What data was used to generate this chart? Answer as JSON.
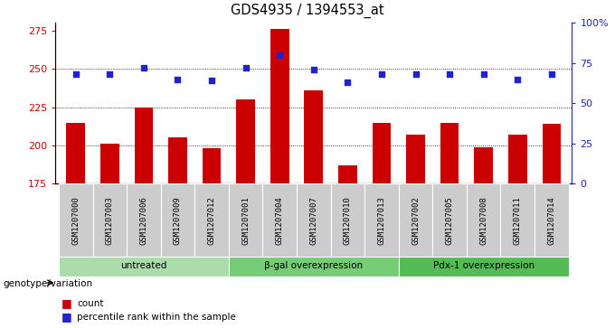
{
  "title": "GDS4935 / 1394553_at",
  "samples": [
    "GSM1207000",
    "GSM1207003",
    "GSM1207006",
    "GSM1207009",
    "GSM1207012",
    "GSM1207001",
    "GSM1207004",
    "GSM1207007",
    "GSM1207010",
    "GSM1207013",
    "GSM1207002",
    "GSM1207005",
    "GSM1207008",
    "GSM1207011",
    "GSM1207014"
  ],
  "counts": [
    215,
    201,
    225,
    205,
    198,
    230,
    276,
    236,
    187,
    215,
    207,
    215,
    199,
    207,
    214
  ],
  "percentiles": [
    68,
    68,
    72,
    65,
    64,
    72,
    80,
    71,
    63,
    68,
    68,
    68,
    68,
    65,
    68
  ],
  "groups": [
    {
      "label": "untreated",
      "start": 0,
      "end": 5
    },
    {
      "label": "β-gal overexpression",
      "start": 5,
      "end": 10
    },
    {
      "label": "Pdx-1 overexpression",
      "start": 10,
      "end": 15
    }
  ],
  "bar_color": "#cc0000",
  "dot_color": "#2222cc",
  "ymin": 175,
  "ymax": 280,
  "yticks_left": [
    175,
    200,
    225,
    250,
    275
  ],
  "yticks_right": [
    0,
    25,
    50,
    75,
    100
  ],
  "grid_vals": [
    200,
    225,
    250
  ],
  "group_colors": [
    "#aaddaa",
    "#77cc77",
    "#55bb55"
  ],
  "label_bg_color": "#cccccc"
}
